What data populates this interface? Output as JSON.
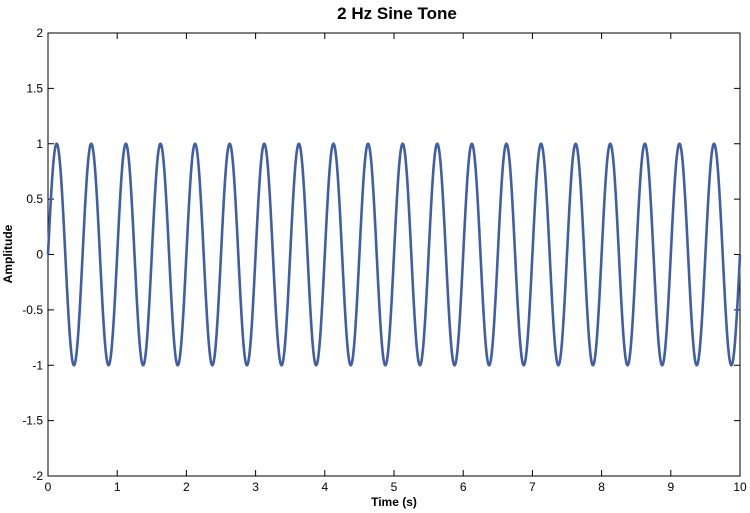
{
  "chart_data": {
    "type": "line",
    "title": "2 Hz Sine Tone",
    "xlabel": "Time (s)",
    "ylabel": "Amplitude",
    "xlim": [
      0,
      10
    ],
    "ylim": [
      -2,
      2
    ],
    "x_ticks": [
      0,
      1,
      2,
      3,
      4,
      5,
      6,
      7,
      8,
      9,
      10
    ],
    "y_ticks": [
      -2,
      -1.5,
      -1,
      -0.5,
      0,
      0.5,
      1,
      1.5,
      2
    ],
    "x_tick_labels": [
      "0",
      "1",
      "2",
      "3",
      "4",
      "5",
      "6",
      "7",
      "8",
      "9",
      "10"
    ],
    "y_tick_labels": [
      "-2",
      "-1.5",
      "-1",
      "-0.5",
      "0",
      "0.5",
      "1",
      "1.5",
      "2"
    ],
    "grid": false,
    "legend": "none",
    "series": [
      {
        "function": "sine",
        "frequency_hz": 2,
        "amplitude": 1,
        "phase": 0,
        "x_range": [
          0,
          10
        ],
        "color": "#3f5ea8"
      }
    ]
  }
}
